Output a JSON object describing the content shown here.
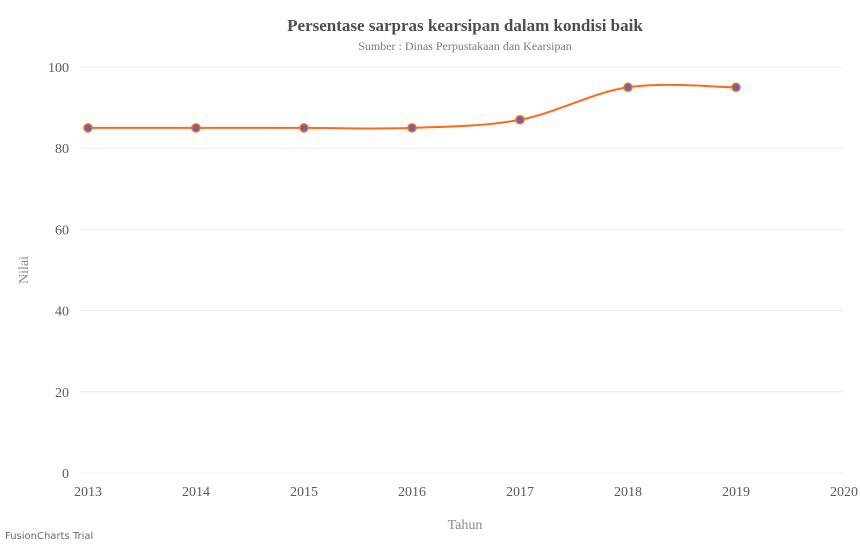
{
  "chart_data": {
    "type": "line",
    "title": "Persentase sarpras kearsipan dalam kondisi baik",
    "subtitle": "Sumber : Dinas Perpustakaan dan Kearsipan",
    "xlabel": "Tahun",
    "ylabel": "Nilai",
    "x": [
      2013,
      2014,
      2015,
      2016,
      2017,
      2018,
      2019
    ],
    "xlim": [
      2013,
      2020
    ],
    "x_ticks": [
      2013,
      2014,
      2015,
      2016,
      2017,
      2018,
      2019,
      2020
    ],
    "ylim": [
      0,
      100
    ],
    "y_ticks": [
      0,
      20,
      40,
      60,
      80,
      100
    ],
    "grid": true,
    "series": [
      {
        "values": [
          85,
          85,
          85,
          85,
          87,
          95,
          95
        ],
        "color": "#ff6a1a",
        "marker_color": "#6b62a8"
      }
    ]
  },
  "watermark": "FusionCharts Trial"
}
